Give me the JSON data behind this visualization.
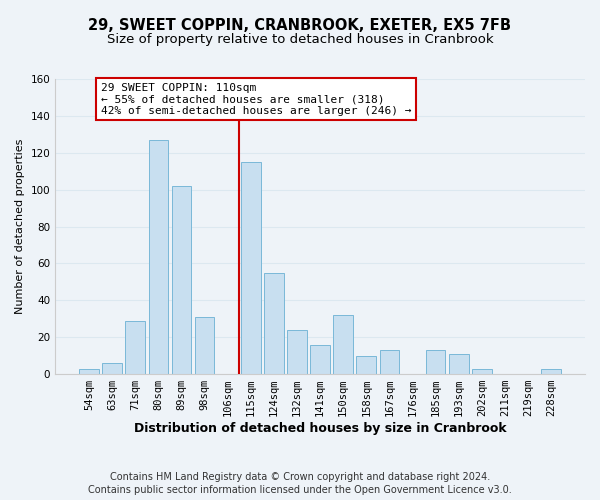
{
  "title": "29, SWEET COPPIN, CRANBROOK, EXETER, EX5 7FB",
  "subtitle": "Size of property relative to detached houses in Cranbrook",
  "xlabel": "Distribution of detached houses by size in Cranbrook",
  "ylabel": "Number of detached properties",
  "bar_labels": [
    "54sqm",
    "63sqm",
    "71sqm",
    "80sqm",
    "89sqm",
    "98sqm",
    "106sqm",
    "115sqm",
    "124sqm",
    "132sqm",
    "141sqm",
    "150sqm",
    "158sqm",
    "167sqm",
    "176sqm",
    "185sqm",
    "193sqm",
    "202sqm",
    "211sqm",
    "219sqm",
    "228sqm"
  ],
  "bar_values": [
    3,
    6,
    29,
    127,
    102,
    31,
    0,
    115,
    55,
    24,
    16,
    32,
    10,
    13,
    0,
    13,
    11,
    3,
    0,
    0,
    3
  ],
  "bar_color": "#c8dff0",
  "bar_edge_color": "#7ab8d8",
  "vline_color": "#cc0000",
  "annotation_text_line1": "29 SWEET COPPIN: 110sqm",
  "annotation_text_line2": "← 55% of detached houses are smaller (318)",
  "annotation_text_line3": "42% of semi-detached houses are larger (246) →",
  "annotation_box_color": "#ffffff",
  "annotation_box_edgecolor": "#cc0000",
  "ylim": [
    0,
    160
  ],
  "yticks": [
    0,
    20,
    40,
    60,
    80,
    100,
    120,
    140,
    160
  ],
  "grid_color": "#dce8f0",
  "footer_line1": "Contains HM Land Registry data © Crown copyright and database right 2024.",
  "footer_line2": "Contains public sector information licensed under the Open Government Licence v3.0.",
  "bg_color": "#eef3f8",
  "plot_bg_color": "#eef3f8",
  "title_fontsize": 10.5,
  "subtitle_fontsize": 9.5,
  "xlabel_fontsize": 9,
  "ylabel_fontsize": 8,
  "tick_fontsize": 7.5,
  "annotation_fontsize": 8,
  "footer_fontsize": 7
}
